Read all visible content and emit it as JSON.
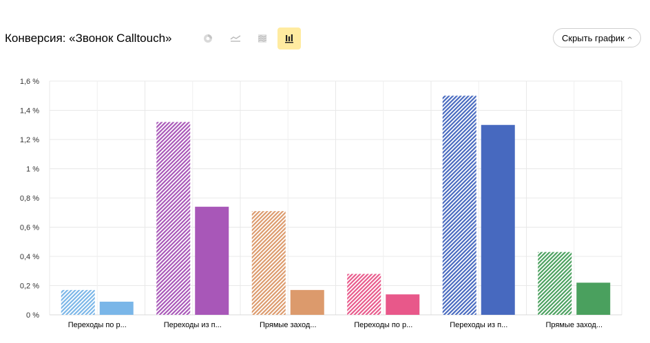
{
  "header": {
    "title": "Конверсия: «Звонок Calltouch»",
    "tools": [
      {
        "icon": "pie-chart-icon",
        "active": false
      },
      {
        "icon": "line-chart-icon",
        "active": false
      },
      {
        "icon": "area-chart-icon",
        "active": false
      },
      {
        "icon": "bar-chart-icon",
        "active": true
      }
    ],
    "hide_button_label": "Скрыть график",
    "hide_button_icon": "chevron-up-icon"
  },
  "chart_data": {
    "type": "bar",
    "categories": [
      "Переходы по р...",
      "Переходы из п...",
      "Прямые заход...",
      "Переходы по р...",
      "Переходы из п...",
      "Прямые заход..."
    ],
    "y_ticks": [
      "0 %",
      "0,2 %",
      "0,4 %",
      "0,6 %",
      "0,8 %",
      "1 %",
      "1,2 %",
      "1,4 %",
      "1,6 %"
    ],
    "ylim": [
      0,
      1.6
    ],
    "grid": true,
    "groups": [
      {
        "values": [
          0.17,
          0.09
        ],
        "colors": [
          "#7ab6e8",
          "#7ab6e8"
        ],
        "hatched": [
          true,
          false
        ]
      },
      {
        "values": [
          1.32,
          0.74
        ],
        "colors": [
          "#a857b8",
          "#a857b8"
        ],
        "hatched": [
          true,
          false
        ]
      },
      {
        "values": [
          0.71,
          0.17
        ],
        "colors": [
          "#dc9a6c",
          "#dc9a6c"
        ],
        "hatched": [
          true,
          false
        ]
      },
      {
        "values": [
          0.28,
          0.14
        ],
        "colors": [
          "#e8588a",
          "#e8588a"
        ],
        "hatched": [
          true,
          false
        ]
      },
      {
        "values": [
          1.5,
          1.3
        ],
        "colors": [
          "#4769bf",
          "#4769bf"
        ],
        "hatched": [
          true,
          false
        ]
      },
      {
        "values": [
          0.43,
          0.22
        ],
        "colors": [
          "#4aa05e",
          "#4aa05e"
        ],
        "hatched": [
          true,
          false
        ]
      }
    ]
  }
}
